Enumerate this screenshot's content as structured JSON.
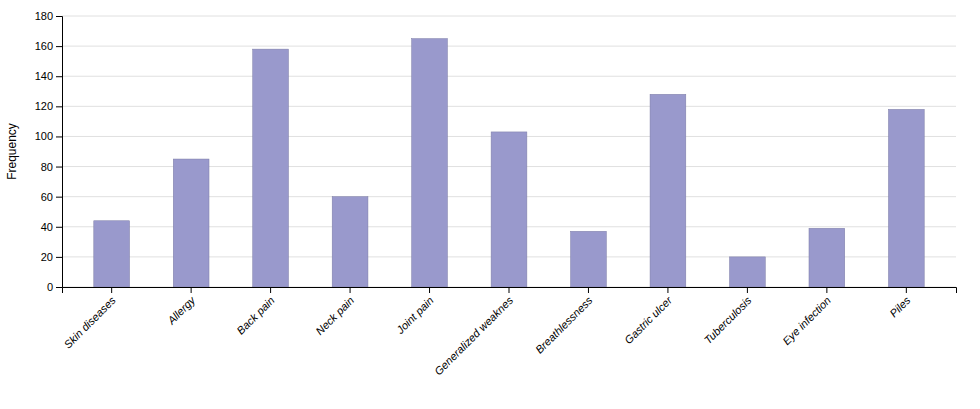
{
  "chart_data": {
    "type": "bar",
    "ylabel": "Frequency",
    "categories": [
      "Skin diseases",
      "Allergy",
      "Back pain",
      "Neck pain",
      "Joint pain",
      "Generalized weaknes",
      "Breathlessness",
      "Gastric ulcer",
      "Tuberculosis",
      "Eye infection",
      "Piles"
    ],
    "values": [
      44,
      85,
      158,
      60,
      165,
      103,
      37,
      128,
      20,
      39,
      118
    ],
    "color": "#9999cc",
    "ylim": [
      0,
      180
    ],
    "yticks": [
      0,
      20,
      40,
      60,
      80,
      100,
      120,
      140,
      160,
      180
    ],
    "grid": true
  }
}
